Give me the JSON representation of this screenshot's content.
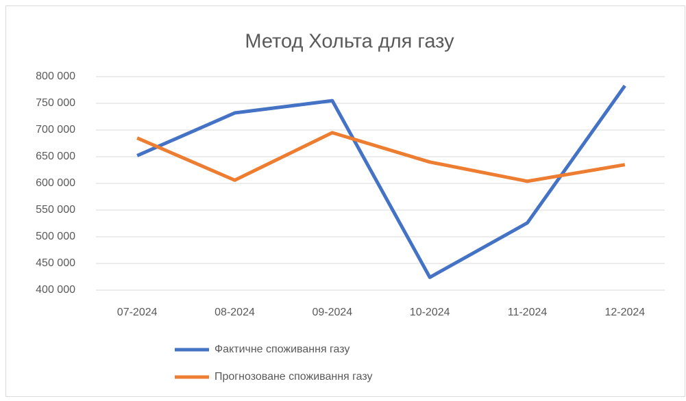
{
  "chart_data": {
    "type": "line",
    "title": "Метод Хольта для газу",
    "categories": [
      "07-2024",
      "08-2024",
      "09-2024",
      "10-2024",
      "11-2024",
      "12-2024"
    ],
    "series": [
      {
        "name": "Фактичне споживання газу",
        "color": "#4472c4",
        "values": [
          652000,
          732000,
          755000,
          424000,
          526000,
          783000
        ]
      },
      {
        "name": "Прогнозоване споживання газу",
        "color": "#ed7d31",
        "values": [
          685000,
          606000,
          695000,
          640000,
          604000,
          635000
        ]
      }
    ],
    "ylim": [
      400000,
      800000
    ],
    "yticks": [
      {
        "value": 400000,
        "label": "400 000"
      },
      {
        "value": 450000,
        "label": "450 000"
      },
      {
        "value": 500000,
        "label": "500 000"
      },
      {
        "value": 550000,
        "label": "550 000"
      },
      {
        "value": 600000,
        "label": "600 000"
      },
      {
        "value": 650000,
        "label": "650 000"
      },
      {
        "value": 700000,
        "label": "700 000"
      },
      {
        "value": 750000,
        "label": "750 000"
      },
      {
        "value": 800000,
        "label": "800 000"
      }
    ],
    "grid": true,
    "legend": "bottom"
  }
}
